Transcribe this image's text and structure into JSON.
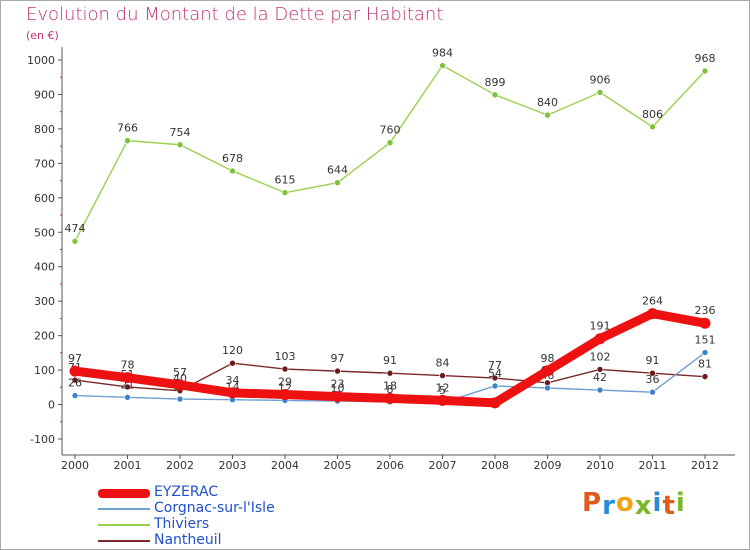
{
  "header": {
    "title": "Evolution du Montant de la Dette par Habitant",
    "unit": "(en €)"
  },
  "brand": {
    "logo_text": "Proxiti",
    "letter_colors": [
      "#e05a1a",
      "#2a8ad8",
      "#f2a51a",
      "#7ab82a",
      "#2a8ad8",
      "#e05a1a",
      "#7ab82a"
    ]
  },
  "chart_data": {
    "type": "line",
    "x": [
      "2000",
      "2001",
      "2002",
      "2003",
      "2004",
      "2005",
      "2006",
      "2007",
      "2008",
      "2009",
      "2010",
      "2011",
      "2012"
    ],
    "ylim": [
      -100,
      1000
    ],
    "yticks": [
      "-100",
      "0",
      "100",
      "200",
      "300",
      "400",
      "500",
      "600",
      "700",
      "800",
      "900",
      "1000"
    ],
    "grid": false,
    "legend_position": "bottom-left",
    "series": [
      {
        "name": "Thiviers",
        "color": "#99d14c",
        "marker": "#7ec23a",
        "values": [
          474,
          766,
          754,
          678,
          615,
          644,
          760,
          984,
          899,
          840,
          906,
          806,
          968
        ],
        "labels": [
          "474",
          "766",
          "754",
          "678",
          "615",
          "644",
          "760",
          "984",
          "899",
          "840",
          "906",
          "806",
          "968"
        ]
      },
      {
        "name": "Nantheuil",
        "color": "#7a2a2a",
        "marker": "#6b1a1a",
        "values": [
          71,
          51,
          40,
          120,
          103,
          97,
          91,
          84,
          77,
          63,
          102,
          91,
          81
        ],
        "labels": [
          "71",
          "51",
          "40",
          "120",
          "103",
          "97",
          "91",
          "84",
          "77",
          "63",
          "102",
          "91",
          "81"
        ]
      },
      {
        "name": "Corgnac-sur-l'Isle",
        "color": "#6ea0d0",
        "marker": "#3f82c8",
        "values": [
          26,
          21,
          16,
          14,
          12,
          10,
          8,
          5,
          54,
          48,
          42,
          36,
          151
        ],
        "labels": [
          "26",
          "21",
          "16",
          "14",
          "12",
          "10",
          "8",
          "5",
          "54",
          "48",
          "42",
          "36",
          "151"
        ]
      },
      {
        "name": "EYZERAC",
        "color": "#ee1111",
        "marker": "#ee1111",
        "values": [
          97,
          78,
          57,
          34,
          29,
          23,
          18,
          12,
          5,
          98,
          191,
          264,
          236
        ],
        "labels": [
          "97",
          "78",
          "57",
          "34",
          "29",
          "23",
          "18",
          "12",
          "",
          "98",
          "191",
          "264",
          "236"
        ]
      }
    ]
  },
  "legend": [
    {
      "name": "EYZERAC",
      "color": "#ee1111",
      "thickness": 9
    },
    {
      "name": "Corgnac-sur-l'Isle",
      "color": "#6ea0d0",
      "thickness": 2
    },
    {
      "name": "Thiviers",
      "color": "#99d14c",
      "thickness": 2
    },
    {
      "name": "Nantheuil",
      "color": "#7a2a2a",
      "thickness": 2
    }
  ]
}
